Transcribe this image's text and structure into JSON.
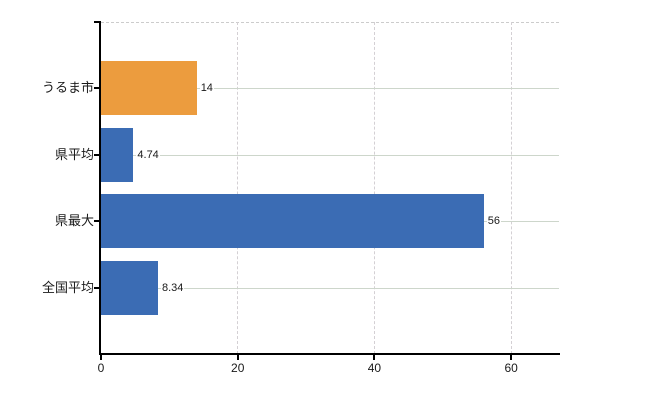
{
  "chart_data": {
    "type": "bar",
    "orientation": "horizontal",
    "categories": [
      "うるま市",
      "県平均",
      "県最大",
      "全国平均"
    ],
    "values": [
      14,
      4.74,
      56,
      8.34
    ],
    "bar_colors": [
      "#EC9C3E",
      "#3B6CB4",
      "#3B6CB4",
      "#3B6CB4"
    ],
    "x_ticks": [
      0,
      20,
      40,
      60
    ],
    "xlim": [
      0,
      67
    ],
    "grid": true,
    "legend": false
  },
  "colors": {
    "background": "#ffffff",
    "axis": "#000000",
    "h_gridline": "#cdd6cb",
    "v_gridline": "#d4d0d4",
    "plot_top_border": "#cccccc",
    "label_text": "#1a1a1a"
  }
}
